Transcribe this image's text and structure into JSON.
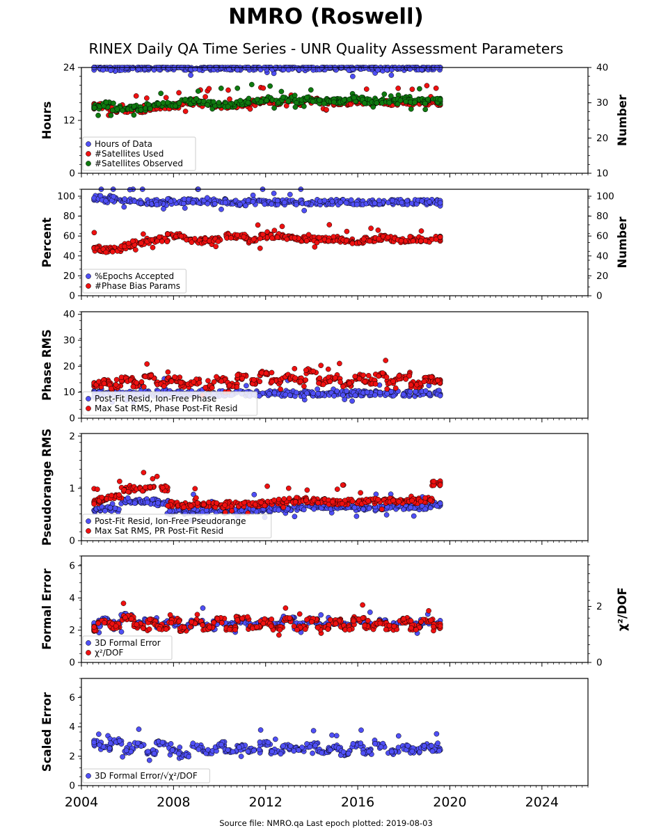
{
  "header": {
    "title": "NMRO (Roswell)",
    "subtitle": "RINEX Daily QA Time Series - UNR Quality Assessment Parameters"
  },
  "footer": {
    "source": "Source file: NMRO.qa Last epoch plotted: 2019-08-03"
  },
  "colors": {
    "blue": "#4f4ff5",
    "red": "#ef1010",
    "green": "#0f7a0f",
    "marker_edge": "#000000"
  },
  "chart_data": [
    {
      "type": "scatter",
      "xlim": [
        2004,
        2026
      ],
      "ylim": [
        0,
        24
      ],
      "y2lim": [
        10,
        40
      ],
      "ylabel": "Hours",
      "y2label": "Number",
      "yticks": [
        "0",
        "12",
        "24"
      ],
      "y2ticks": [
        "10",
        "20",
        "30",
        "40"
      ],
      "legend": "lower-left",
      "grid": false,
      "series": [
        {
          "name": "Hours of Data",
          "color": "blue",
          "axis": "left",
          "x": [
            2004.6,
            2005.0,
            2005.5,
            2006.0,
            2006.5,
            2007.0,
            2007.5,
            2008.0,
            2008.5,
            2009.0,
            2009.5,
            2010.0,
            2010.5,
            2011.0,
            2011.5,
            2012.0,
            2012.5,
            2013.0,
            2013.5,
            2014.0,
            2014.5,
            2015.0,
            2015.5,
            2016.0,
            2016.5,
            2017.0,
            2017.5,
            2018.0,
            2018.5,
            2019.0,
            2019.5
          ],
          "y": [
            24,
            24,
            23.8,
            24,
            24,
            23.9,
            24,
            24,
            24,
            23.8,
            24,
            24,
            24,
            23.9,
            24,
            24,
            24,
            24,
            23.8,
            24,
            24,
            24,
            23.9,
            24,
            24,
            24,
            24,
            23.8,
            24,
            24,
            24
          ]
        },
        {
          "name": "#Satellites Used",
          "color": "red",
          "axis": "right",
          "x": [
            2004.6,
            2005.0,
            2005.5,
            2006.0,
            2006.5,
            2007.0,
            2007.5,
            2008.0,
            2008.5,
            2009.0,
            2009.5,
            2010.0,
            2010.5,
            2011.0,
            2011.5,
            2012.0,
            2012.5,
            2013.0,
            2013.5,
            2014.0,
            2014.5,
            2015.0,
            2015.5,
            2016.0,
            2016.5,
            2017.0,
            2017.5,
            2018.0,
            2018.5,
            2019.0,
            2019.5
          ],
          "y": [
            29,
            29,
            28,
            28,
            28,
            28.5,
            29,
            29,
            30,
            30,
            29.5,
            29,
            29,
            29.5,
            30,
            30.5,
            30,
            30.5,
            30,
            30.5,
            30,
            30,
            30,
            30.5,
            30,
            30,
            30,
            30.5,
            30,
            30,
            30
          ]
        },
        {
          "name": "#Satellites Observed",
          "color": "green",
          "axis": "right",
          "x": [
            2004.6,
            2005.0,
            2005.5,
            2006.0,
            2006.5,
            2007.0,
            2007.5,
            2008.0,
            2008.5,
            2009.0,
            2009.5,
            2010.0,
            2010.5,
            2011.0,
            2011.5,
            2012.0,
            2012.5,
            2013.0,
            2013.5,
            2014.0,
            2014.5,
            2015.0,
            2015.5,
            2016.0,
            2016.5,
            2017.0,
            2017.5,
            2018.0,
            2018.5,
            2019.0,
            2019.5
          ],
          "y": [
            29,
            29.5,
            28.5,
            28.5,
            28.5,
            29,
            29.5,
            29.5,
            30.5,
            30.5,
            30,
            29.5,
            29.5,
            30,
            30.5,
            31,
            30.5,
            31,
            30.5,
            31,
            30.5,
            30.5,
            30.5,
            31,
            30.5,
            30.5,
            30.5,
            31,
            30.5,
            30.5,
            30.5
          ]
        }
      ]
    },
    {
      "type": "scatter",
      "xlim": [
        2004,
        2026
      ],
      "ylim": [
        0,
        107
      ],
      "y2lim": [
        0,
        107
      ],
      "ylabel": "Percent",
      "y2label": "Number",
      "yticks": [
        "0",
        "20",
        "40",
        "60",
        "80",
        "100"
      ],
      "y2ticks": [
        "0",
        "20",
        "40",
        "60",
        "80",
        "100"
      ],
      "legend": "lower-left",
      "grid": false,
      "series": [
        {
          "name": "%Epochs Accepted",
          "color": "blue",
          "axis": "left",
          "x": [
            2004.6,
            2005.0,
            2005.5,
            2006.0,
            2006.5,
            2007.0,
            2007.5,
            2008.0,
            2008.5,
            2009.0,
            2009.5,
            2010.0,
            2010.5,
            2011.0,
            2011.5,
            2012.0,
            2012.5,
            2013.0,
            2013.5,
            2014.0,
            2014.5,
            2015.0,
            2015.5,
            2016.0,
            2016.5,
            2017.0,
            2017.5,
            2018.0,
            2018.5,
            2019.0,
            2019.5
          ],
          "y": [
            98,
            98,
            97,
            95,
            94,
            94,
            93,
            95,
            95,
            94,
            94,
            95,
            94,
            93,
            94,
            94,
            94,
            94,
            94,
            94,
            94,
            94,
            94,
            94,
            94,
            94,
            94,
            94,
            94,
            94,
            94
          ]
        },
        {
          "name": "#Phase Bias Params",
          "color": "red",
          "axis": "right",
          "x": [
            2004.6,
            2005.0,
            2005.5,
            2006.0,
            2006.5,
            2007.0,
            2007.5,
            2008.0,
            2008.5,
            2009.0,
            2009.5,
            2010.0,
            2010.5,
            2011.0,
            2011.5,
            2012.0,
            2012.5,
            2013.0,
            2013.5,
            2014.0,
            2014.5,
            2015.0,
            2015.5,
            2016.0,
            2016.5,
            2017.0,
            2017.5,
            2018.0,
            2018.5,
            2019.0,
            2019.5
          ],
          "y": [
            47,
            46,
            46,
            50,
            53,
            55,
            57,
            60,
            58,
            55,
            56,
            57,
            60,
            59,
            55,
            60,
            60,
            58,
            57,
            57,
            56,
            57,
            56,
            54,
            56,
            58,
            57,
            55,
            57,
            56,
            57
          ]
        }
      ]
    },
    {
      "type": "scatter",
      "xlim": [
        2004,
        2026
      ],
      "ylim": [
        0,
        41
      ],
      "ylabel": "Phase RMS",
      "yticks": [
        "0",
        "10",
        "20",
        "30",
        "40"
      ],
      "legend": "lower-left",
      "grid": false,
      "series": [
        {
          "name": "Post-Fit Resid, Ion-Free Phase",
          "color": "blue",
          "x": [
            2004.6,
            2005.0,
            2005.5,
            2006.0,
            2006.5,
            2007.0,
            2007.5,
            2008.0,
            2008.5,
            2009.0,
            2009.5,
            2010.0,
            2010.5,
            2011.0,
            2011.5,
            2012.0,
            2012.5,
            2013.0,
            2013.5,
            2014.0,
            2014.5,
            2015.0,
            2015.5,
            2016.0,
            2016.5,
            2017.0,
            2017.5,
            2018.0,
            2018.5,
            2019.0,
            2019.5
          ],
          "y": [
            9.5,
            9.6,
            9.4,
            9.5,
            9.6,
            9.5,
            9.7,
            9.5,
            9.4,
            9.6,
            9.5,
            9.5,
            9.6,
            9.5,
            9.5,
            9.6,
            9.5,
            9.6,
            9.5,
            9.4,
            9.6,
            9.5,
            9.5,
            9.6,
            9.5,
            9.5,
            9.6,
            9.5,
            9.4,
            9.5,
            9.5
          ]
        },
        {
          "name": "Max Sat RMS, Phase Post-Fit Resid",
          "color": "red",
          "x": [
            2004.6,
            2005.0,
            2005.5,
            2006.0,
            2006.5,
            2007.0,
            2007.5,
            2008.0,
            2008.5,
            2009.0,
            2009.5,
            2010.0,
            2010.5,
            2011.0,
            2011.5,
            2012.0,
            2012.5,
            2013.0,
            2013.5,
            2014.0,
            2014.5,
            2015.0,
            2015.5,
            2016.0,
            2016.5,
            2017.0,
            2017.5,
            2018.0,
            2018.5,
            2019.0,
            2019.5
          ],
          "y": [
            13,
            14,
            12,
            15,
            13,
            16,
            13,
            15,
            13,
            14,
            12,
            15,
            13,
            16,
            14,
            17,
            14,
            16,
            15,
            18,
            14,
            15,
            13,
            16,
            14,
            17,
            14,
            16,
            13,
            15,
            14
          ]
        }
      ]
    },
    {
      "type": "scatter",
      "xlim": [
        2004,
        2026
      ],
      "ylim": [
        0,
        2.05
      ],
      "ylabel": "Pseudorange RMS",
      "yticks": [
        "0",
        "1",
        "2"
      ],
      "legend": "lower-left",
      "grid": false,
      "series": [
        {
          "name": "Post-Fit Resid, Ion-Free Pseudorange",
          "color": "blue",
          "x": [
            2004.6,
            2005.0,
            2005.5,
            2006.0,
            2006.5,
            2007.0,
            2007.5,
            2008.0,
            2008.5,
            2009.0,
            2009.5,
            2010.0,
            2010.5,
            2011.0,
            2011.5,
            2012.0,
            2012.5,
            2013.0,
            2013.5,
            2014.0,
            2014.5,
            2015.0,
            2015.5,
            2016.0,
            2016.5,
            2017.0,
            2017.5,
            2018.0,
            2018.5,
            2019.0,
            2019.5
          ],
          "y": [
            0.6,
            0.62,
            0.6,
            0.75,
            0.75,
            0.75,
            0.72,
            0.55,
            0.55,
            0.56,
            0.57,
            0.57,
            0.58,
            0.58,
            0.58,
            0.6,
            0.62,
            0.63,
            0.63,
            0.64,
            0.65,
            0.65,
            0.63,
            0.63,
            0.62,
            0.63,
            0.64,
            0.65,
            0.64,
            0.65,
            0.68
          ]
        },
        {
          "name": "Max Sat RMS, PR Post-Fit Resid",
          "color": "red",
          "x": [
            2004.6,
            2005.0,
            2005.5,
            2006.0,
            2006.5,
            2007.0,
            2007.5,
            2008.0,
            2008.5,
            2009.0,
            2009.5,
            2010.0,
            2010.5,
            2011.0,
            2011.5,
            2012.0,
            2012.5,
            2013.0,
            2013.5,
            2014.0,
            2014.5,
            2015.0,
            2015.5,
            2016.0,
            2016.5,
            2017.0,
            2017.5,
            2018.0,
            2018.5,
            2019.0,
            2019.5
          ],
          "y": [
            0.75,
            0.8,
            0.85,
            0.98,
            1.0,
            1.02,
            1.0,
            0.7,
            0.68,
            0.7,
            0.7,
            0.68,
            0.7,
            0.7,
            0.7,
            0.72,
            0.74,
            0.76,
            0.78,
            0.76,
            0.76,
            0.74,
            0.74,
            0.74,
            0.75,
            0.76,
            0.76,
            0.76,
            0.76,
            0.78,
            1.1
          ]
        }
      ]
    },
    {
      "type": "scatter",
      "xlim": [
        2004,
        2026
      ],
      "ylim": [
        0,
        6.6
      ],
      "y2lim": [
        0,
        3.8
      ],
      "ylabel": "Formal Error",
      "y2label": "χ²/DOF",
      "yticks": [
        "0",
        "2",
        "4",
        "6"
      ],
      "y2ticks": [
        "0",
        "2"
      ],
      "legend": "lower-left",
      "grid": false,
      "series": [
        {
          "name": "3D Formal Error",
          "color": "blue",
          "axis": "left",
          "x": [
            2004.6,
            2005.0,
            2005.5,
            2006.0,
            2006.5,
            2007.0,
            2007.5,
            2008.0,
            2008.5,
            2009.0,
            2009.5,
            2010.0,
            2010.5,
            2011.0,
            2011.5,
            2012.0,
            2012.5,
            2013.0,
            2013.5,
            2014.0,
            2014.5,
            2015.0,
            2015.5,
            2016.0,
            2016.5,
            2017.0,
            2017.5,
            2018.0,
            2018.5,
            2019.0,
            2019.5
          ],
          "y": [
            2.3,
            2.6,
            2.4,
            2.9,
            2.4,
            2.6,
            2.3,
            2.5,
            2.2,
            2.6,
            2.3,
            2.5,
            2.3,
            2.6,
            2.3,
            2.5,
            2.3,
            2.7,
            2.3,
            2.6,
            2.3,
            2.5,
            2.3,
            2.6,
            2.3,
            2.5,
            2.3,
            2.6,
            2.3,
            2.5,
            2.3
          ]
        },
        {
          "name": "χ²/DOF",
          "color": "red",
          "axis": "right",
          "x": [
            2004.6,
            2005.0,
            2005.5,
            2006.0,
            2006.5,
            2007.0,
            2007.5,
            2008.0,
            2008.5,
            2009.0,
            2009.5,
            2010.0,
            2010.5,
            2011.0,
            2011.5,
            2012.0,
            2012.5,
            2013.0,
            2013.5,
            2014.0,
            2014.5,
            2015.0,
            2015.5,
            2016.0,
            2016.5,
            2017.0,
            2017.5,
            2018.0,
            2018.5,
            2019.0,
            2019.5
          ],
          "y": [
            1.2,
            1.45,
            1.3,
            1.6,
            1.3,
            1.45,
            1.25,
            1.5,
            1.2,
            1.45,
            1.25,
            1.5,
            1.25,
            1.55,
            1.25,
            1.45,
            1.25,
            1.55,
            1.25,
            1.5,
            1.25,
            1.45,
            1.25,
            1.55,
            1.25,
            1.45,
            1.25,
            1.5,
            1.25,
            1.45,
            1.3
          ]
        }
      ]
    },
    {
      "type": "scatter",
      "xlim": [
        2004,
        2026
      ],
      "ylim": [
        0,
        7.3
      ],
      "ylabel": "Scaled Error",
      "yticks": [
        "0",
        "2",
        "4",
        "6"
      ],
      "xticks": [
        "2004",
        "2008",
        "2012",
        "2016",
        "2020",
        "2024"
      ],
      "legend": "lower-left",
      "grid": false,
      "series": [
        {
          "name": "3D Formal Error/√χ²/DOF",
          "color": "blue",
          "x": [
            2004.6,
            2005.0,
            2005.5,
            2006.0,
            2006.5,
            2007.0,
            2007.5,
            2008.0,
            2008.5,
            2009.0,
            2009.5,
            2010.0,
            2010.5,
            2011.0,
            2011.5,
            2012.0,
            2012.5,
            2013.0,
            2013.5,
            2014.0,
            2014.5,
            2015.0,
            2015.5,
            2016.0,
            2016.5,
            2017.0,
            2017.5,
            2018.0,
            2018.5,
            2019.0,
            2019.5
          ],
          "y": [
            2.9,
            2.6,
            3.0,
            2.4,
            2.8,
            2.3,
            2.9,
            2.5,
            2.1,
            2.6,
            2.3,
            2.8,
            2.3,
            2.6,
            2.4,
            2.9,
            2.3,
            2.6,
            2.5,
            2.8,
            2.3,
            2.6,
            2.2,
            2.8,
            2.3,
            2.7,
            2.3,
            2.6,
            2.4,
            2.7,
            2.5
          ]
        }
      ]
    }
  ]
}
